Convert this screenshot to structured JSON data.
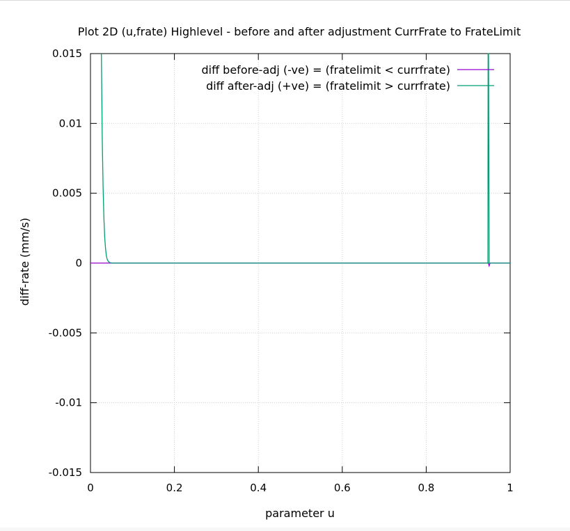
{
  "chart_data": {
    "type": "line",
    "title": "Plot 2D (u,frate) Highlevel - before and after adjustment CurrFrate to FrateLimit",
    "xlabel": "parameter u",
    "ylabel": "diff-rate (mm/s)",
    "xlim": [
      0,
      1
    ],
    "ylim": [
      -0.015,
      0.015
    ],
    "x_ticks": [
      "0",
      "0.2",
      "0.4",
      "0.6",
      "0.8",
      "1"
    ],
    "y_ticks": [
      "0.015",
      "0.01",
      "0.005",
      "0",
      "-0.005",
      "-0.01",
      "-0.015"
    ],
    "grid": true,
    "legend_position": "top-right",
    "series": [
      {
        "name": "diff before-adj (-ve) = (fratelimit < currfrate)",
        "color": "#9400d3",
        "x": [
          0.0,
          0.2,
          0.4,
          0.6,
          0.8,
          0.948,
          0.95,
          0.952,
          1.0
        ],
        "y": [
          0,
          0,
          0,
          0,
          0,
          0,
          -0.0002,
          0,
          0
        ]
      },
      {
        "name": "diff after-adj (+ve) = (fratelimit > currfrate)",
        "color": "#009e73",
        "x": [
          0.026,
          0.027,
          0.028,
          0.03,
          0.032,
          0.034,
          0.036,
          0.038,
          0.04,
          0.043,
          0.046,
          0.05,
          0.2,
          0.4,
          0.5,
          0.6,
          0.8,
          0.947,
          0.9475,
          0.9485,
          0.95,
          1.0
        ],
        "y": [
          0.015,
          0.012,
          0.009,
          0.0055,
          0.0032,
          0.0018,
          0.001,
          0.0005,
          0.00025,
          0.0001,
          4e-05,
          0.0,
          0.0,
          0.0,
          0.0,
          0.0,
          0.0,
          0.0,
          0.015,
          0.015,
          0.0,
          0.0
        ]
      }
    ]
  }
}
